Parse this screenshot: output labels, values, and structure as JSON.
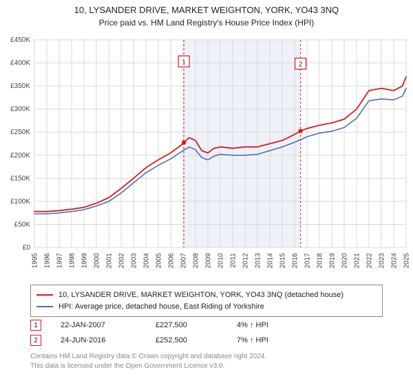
{
  "title": "10, LYSANDER DRIVE, MARKET WEIGHTON, YORK, YO43 3NQ",
  "subtitle": "Price paid vs. HM Land Registry's House Price Index (HPI)",
  "chart": {
    "type": "line",
    "background_color": "#ffffff",
    "grid_color": "#d9d9d9",
    "shade_color": "#eef1f8",
    "shade_start_year": 2007.06,
    "shade_end_year": 2016.48,
    "xlim": [
      1995,
      2025
    ],
    "x_ticks": [
      1995,
      1996,
      1997,
      1998,
      1999,
      2000,
      2001,
      2002,
      2003,
      2004,
      2005,
      2006,
      2007,
      2008,
      2009,
      2010,
      2011,
      2012,
      2013,
      2014,
      2015,
      2016,
      2017,
      2018,
      2019,
      2020,
      2021,
      2022,
      2023,
      2024,
      2025
    ],
    "ylim": [
      0,
      450
    ],
    "y_ticks": [
      0,
      50,
      100,
      150,
      200,
      250,
      300,
      350,
      400,
      450
    ],
    "y_tick_labels": [
      "£0",
      "£50K",
      "£100K",
      "£150K",
      "£200K",
      "£250K",
      "£300K",
      "£350K",
      "£400K",
      "£450K"
    ],
    "axis_label_fontsize": 10,
    "axis_label_color": "#444444",
    "series": [
      {
        "name": "10, LYSANDER DRIVE, MARKET WEIGHTON, YORK, YO43 3NQ (detached house)",
        "color": "#d71a1a",
        "line_width": 1.8,
        "x": [
          1995,
          1996,
          1997,
          1998,
          1999,
          2000,
          2001,
          2002,
          2003,
          2004,
          2005,
          2006,
          2007,
          2007.06,
          2007.5,
          2008,
          2008.5,
          2009,
          2009.5,
          2010,
          2011,
          2012,
          2013,
          2014,
          2015,
          2016,
          2016.48,
          2017,
          2018,
          2019,
          2020,
          2021,
          2022,
          2023,
          2024,
          2024.7,
          2025
        ],
        "y": [
          78,
          78,
          80,
          83,
          87,
          96,
          108,
          128,
          150,
          173,
          190,
          205,
          225,
          227.5,
          238,
          232,
          210,
          205,
          215,
          218,
          215,
          218,
          218,
          225,
          232,
          245,
          252.5,
          258,
          265,
          270,
          278,
          300,
          340,
          345,
          340,
          350,
          370
        ]
      },
      {
        "name": "HPI: Average price, detached house, East Riding of Yorkshire",
        "color": "#4a6fb3",
        "line_width": 1.6,
        "x": [
          1995,
          1996,
          1997,
          1998,
          1999,
          2000,
          2001,
          2002,
          2003,
          2004,
          2005,
          2006,
          2007,
          2007.5,
          2008,
          2008.5,
          2009,
          2009.5,
          2010,
          2011,
          2012,
          2013,
          2014,
          2015,
          2016,
          2017,
          2018,
          2019,
          2020,
          2021,
          2022,
          2023,
          2024,
          2024.7,
          2025
        ],
        "y": [
          73,
          73,
          75,
          78,
          82,
          90,
          100,
          118,
          140,
          162,
          178,
          192,
          210,
          218,
          212,
          195,
          190,
          198,
          202,
          200,
          200,
          202,
          210,
          218,
          228,
          240,
          248,
          252,
          260,
          280,
          318,
          322,
          320,
          328,
          345
        ]
      }
    ],
    "markers": [
      {
        "id": "1",
        "x": 2007.06,
        "y": 227.5,
        "badge_color": "#d71a1a",
        "line_color": "#d71a1a",
        "badge_y_offset": -118
      },
      {
        "id": "2",
        "x": 2016.48,
        "y": 252.5,
        "badge_color": "#d71a1a",
        "line_color": "#d71a1a",
        "badge_y_offset": -98
      }
    ]
  },
  "legend": {
    "items": [
      {
        "color": "#d71a1a",
        "label": "10, LYSANDER DRIVE, MARKET WEIGHTON, YORK, YO43 3NQ (detached house)"
      },
      {
        "color": "#4a6fb3",
        "label": "HPI: Average price, detached house, East Riding of Yorkshire"
      }
    ]
  },
  "marker_table": [
    {
      "id": "1",
      "badge_color": "#d71a1a",
      "date": "22-JAN-2007",
      "price": "£227,500",
      "delta": "4% ↑ HPI"
    },
    {
      "id": "2",
      "badge_color": "#d71a1a",
      "date": "24-JUN-2016",
      "price": "£252,500",
      "delta": "7% ↑ HPI"
    }
  ],
  "footer": {
    "line1": "Contains HM Land Registry data © Crown copyright and database right 2024.",
    "line2": "This data is licensed under the Open Government Licence v3.0."
  }
}
